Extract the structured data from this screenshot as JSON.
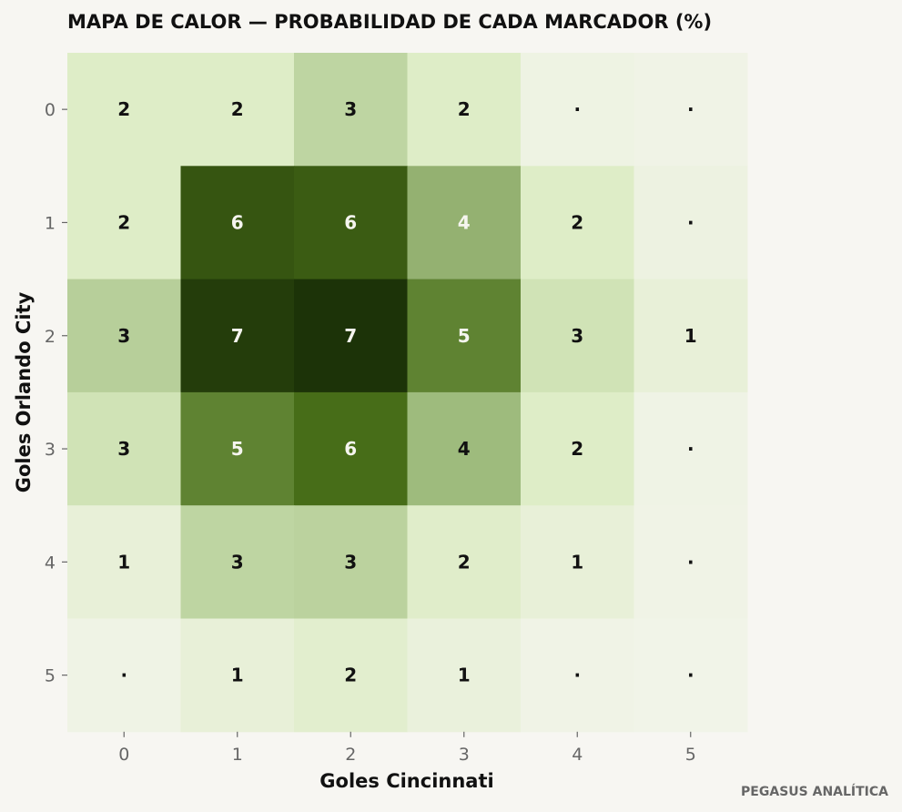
{
  "chart_data": {
    "type": "heatmap",
    "title": "MAPA DE CALOR — PROBABILIDAD DE CADA MARCADOR (%)",
    "xlabel": "Goles Cincinnati",
    "ylabel": "Goles Orlando City",
    "x_categories": [
      "0",
      "1",
      "2",
      "3",
      "4",
      "5"
    ],
    "y_categories": [
      "0",
      "1",
      "2",
      "3",
      "4",
      "5"
    ],
    "values": [
      [
        2.0,
        2.0,
        3.0,
        2.0,
        0.4,
        0.2
      ],
      [
        2.0,
        6.2,
        6.0,
        4.0,
        2.0,
        0.5
      ],
      [
        3.2,
        6.9,
        7.2,
        5.0,
        2.5,
        1.0
      ],
      [
        2.5,
        5.0,
        5.5,
        3.8,
        2.0,
        0.3
      ],
      [
        1.0,
        3.0,
        3.1,
        1.8,
        1.0,
        0.2
      ],
      [
        0.3,
        1.0,
        1.6,
        0.8,
        0.2,
        0.1
      ]
    ],
    "labels": [
      [
        "2",
        "2",
        "3",
        "2",
        "·",
        "·"
      ],
      [
        "2",
        "6",
        "6",
        "4",
        "2",
        "·"
      ],
      [
        "3",
        "7",
        "7",
        "5",
        "3",
        "1"
      ],
      [
        "3",
        "5",
        "6",
        "4",
        "2",
        "·"
      ],
      [
        "1",
        "3",
        "3",
        "2",
        "1",
        "·"
      ],
      [
        "·",
        "1",
        "2",
        "1",
        "·",
        "·"
      ]
    ],
    "value_range": [
      0,
      7.2
    ],
    "colors": {
      "low": "#f2f4ea",
      "mid_light": "#dcecc4",
      "mid": "#a9c48a",
      "mid_dark": "#4a7019",
      "high": "#1c3308",
      "axis_text": "#666666",
      "title_text": "#111111"
    },
    "grid": false
  },
  "footer": {
    "credit": "PEGASUS ANALÍTICA"
  }
}
